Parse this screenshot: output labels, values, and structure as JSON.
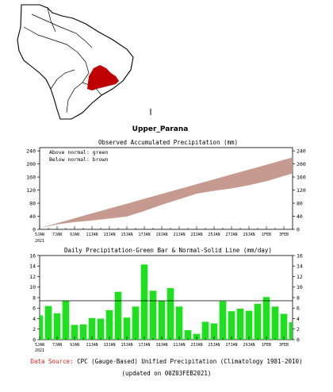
{
  "region_name": "Upper_Parana",
  "colors": {
    "normal_band": "#c69a8e",
    "bars": "#1ee01e",
    "map_region": "#c00000"
  },
  "chart_data": [
    {
      "type": "area",
      "title": "Observed Accumulated Precipitation (mm)",
      "legend_lines": [
        "Above normal: green",
        "Below normal: brown"
      ],
      "legend_placement": "top-left",
      "xlim": [
        "2021-01-05",
        "2021-02-03"
      ],
      "x_tick_labels": [
        "5JAN",
        "7JAN",
        "9JAN",
        "11JAN",
        "13JAN",
        "15JAN",
        "17JAN",
        "19JAN",
        "21JAN",
        "23JAN",
        "25JAN",
        "27JAN",
        "29JAN",
        "1FEB",
        "3FEB"
      ],
      "x_year_label": "2021",
      "ylim": [
        0,
        250
      ],
      "y_ticks": [
        0,
        40,
        80,
        120,
        160,
        200,
        240
      ],
      "grid": false,
      "series": [
        {
          "name": "normal",
          "x": [
            "2021-01-05",
            "2021-02-03"
          ],
          "y": [
            4,
            220
          ]
        },
        {
          "name": "observed",
          "x": [
            "2021-01-05",
            "2021-01-07",
            "2021-01-09",
            "2021-01-11",
            "2021-01-13",
            "2021-01-15",
            "2021-01-17",
            "2021-01-19",
            "2021-01-21",
            "2021-01-23",
            "2021-01-25",
            "2021-01-27",
            "2021-01-29",
            "2021-01-31",
            "2021-02-02",
            "2021-02-03"
          ],
          "y": [
            4,
            15,
            22,
            27,
            33,
            39,
            56,
            75,
            92,
            109,
            118,
            125,
            135,
            147,
            163,
            171
          ]
        }
      ]
    },
    {
      "type": "bar",
      "title": "Daily Precipitation-Green Bar & Normal-Solid Line (mm/day)",
      "xlim": [
        "2021-01-05",
        "2021-02-03"
      ],
      "x_tick_labels": [
        "5JAN",
        "7JAN",
        "9JAN",
        "11JAN",
        "13JAN",
        "15JAN",
        "17JAN",
        "19JAN",
        "21JAN",
        "23JAN",
        "25JAN",
        "27JAN",
        "29JAN",
        "1FEB",
        "3FEB"
      ],
      "x_year_label": "2021",
      "ylim": [
        0,
        16
      ],
      "y_ticks": [
        0,
        2,
        4,
        6,
        8,
        10,
        12,
        14,
        16
      ],
      "grid": false,
      "x": [
        "2021-01-05",
        "2021-01-06",
        "2021-01-07",
        "2021-01-08",
        "2021-01-09",
        "2021-01-10",
        "2021-01-11",
        "2021-01-12",
        "2021-01-13",
        "2021-01-14",
        "2021-01-15",
        "2021-01-16",
        "2021-01-17",
        "2021-01-18",
        "2021-01-19",
        "2021-01-20",
        "2021-01-21",
        "2021-01-22",
        "2021-01-23",
        "2021-01-24",
        "2021-01-25",
        "2021-01-26",
        "2021-01-27",
        "2021-01-28",
        "2021-01-29",
        "2021-01-30",
        "2021-01-31",
        "2021-02-01",
        "2021-02-02",
        "2021-02-03"
      ],
      "values": [
        4.6,
        6.4,
        5.0,
        7.4,
        2.8,
        2.9,
        4.1,
        4.0,
        5.6,
        9.1,
        4.2,
        6.3,
        14.3,
        9.3,
        7.4,
        9.8,
        6.3,
        1.8,
        1.1,
        3.4,
        3.1,
        7.3,
        5.4,
        5.9,
        5.5,
        6.8,
        8.1,
        6.3,
        4.9,
        3.3
      ],
      "normal_line": [
        7.4,
        7.4
      ]
    }
  ],
  "footer": {
    "source_label": "Data Source:",
    "source_text": "CPC (Gauge-Based) Unified Precipitation (Climatology 1981-2010)",
    "updated_text": "(updated on 00Z03FEB2021)"
  }
}
